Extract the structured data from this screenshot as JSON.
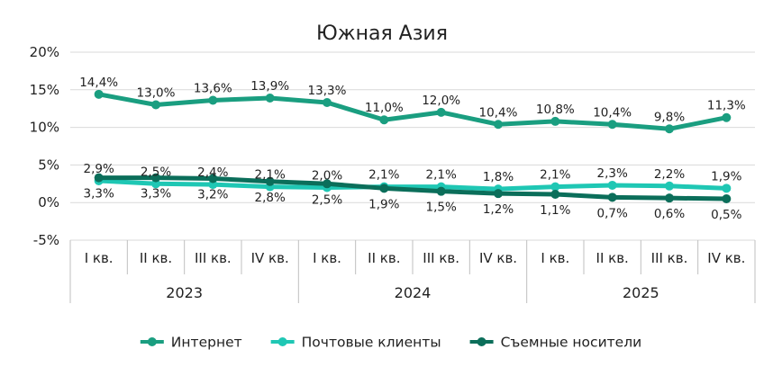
{
  "chart_data": {
    "type": "line",
    "title": "Южная Азия",
    "y_axis": {
      "min": -5,
      "max": 20,
      "step": 5,
      "tick_labels": [
        "-5%",
        "0%",
        "5%",
        "10%",
        "15%",
        "20%"
      ]
    },
    "grid": true,
    "legend_position": "bottom",
    "categories": [
      "I кв.",
      "II кв.",
      "III кв.",
      "IV кв.",
      "I кв.",
      "II кв.",
      "III кв.",
      "IV кв.",
      "I кв.",
      "II кв.",
      "III кв.",
      "IV кв."
    ],
    "years": [
      {
        "label": "2023",
        "span": 4
      },
      {
        "label": "2024",
        "span": 4
      },
      {
        "label": "2025",
        "span": 4
      }
    ],
    "series": [
      {
        "name": "Интернет",
        "color": "#1a9e80",
        "values": [
          14.4,
          13.0,
          13.6,
          13.9,
          13.3,
          11.0,
          12.0,
          10.4,
          10.8,
          10.4,
          9.8,
          11.3
        ],
        "labels": [
          "14,4%",
          "13,0%",
          "13,6%",
          "13,9%",
          "13,3%",
          "11,0%",
          "12,0%",
          "10,4%",
          "10,8%",
          "10,4%",
          "9,8%",
          "11,3%"
        ],
        "label_position": "above"
      },
      {
        "name": "Почтовые клиенты",
        "color": "#1fc7b4",
        "values": [
          2.9,
          2.5,
          2.4,
          2.1,
          2.0,
          2.1,
          2.1,
          1.8,
          2.1,
          2.3,
          2.2,
          1.9
        ],
        "labels": [
          "2,9%",
          "2,5%",
          "2,4%",
          "2,1%",
          "2,0%",
          "2,1%",
          "2,1%",
          "1,8%",
          "2,1%",
          "2,3%",
          "2,2%",
          "1,9%"
        ],
        "label_position": "above"
      },
      {
        "name": "Съемные носители",
        "color": "#0b6e5a",
        "values": [
          3.3,
          3.3,
          3.2,
          2.8,
          2.5,
          1.9,
          1.5,
          1.2,
          1.1,
          0.7,
          0.6,
          0.5
        ],
        "labels": [
          "3,3%",
          "3,3%",
          "3,2%",
          "2,8%",
          "2,5%",
          "1,9%",
          "1,5%",
          "1,2%",
          "1,1%",
          "0,7%",
          "0,6%",
          "0,5%"
        ],
        "label_position": "below"
      }
    ]
  }
}
